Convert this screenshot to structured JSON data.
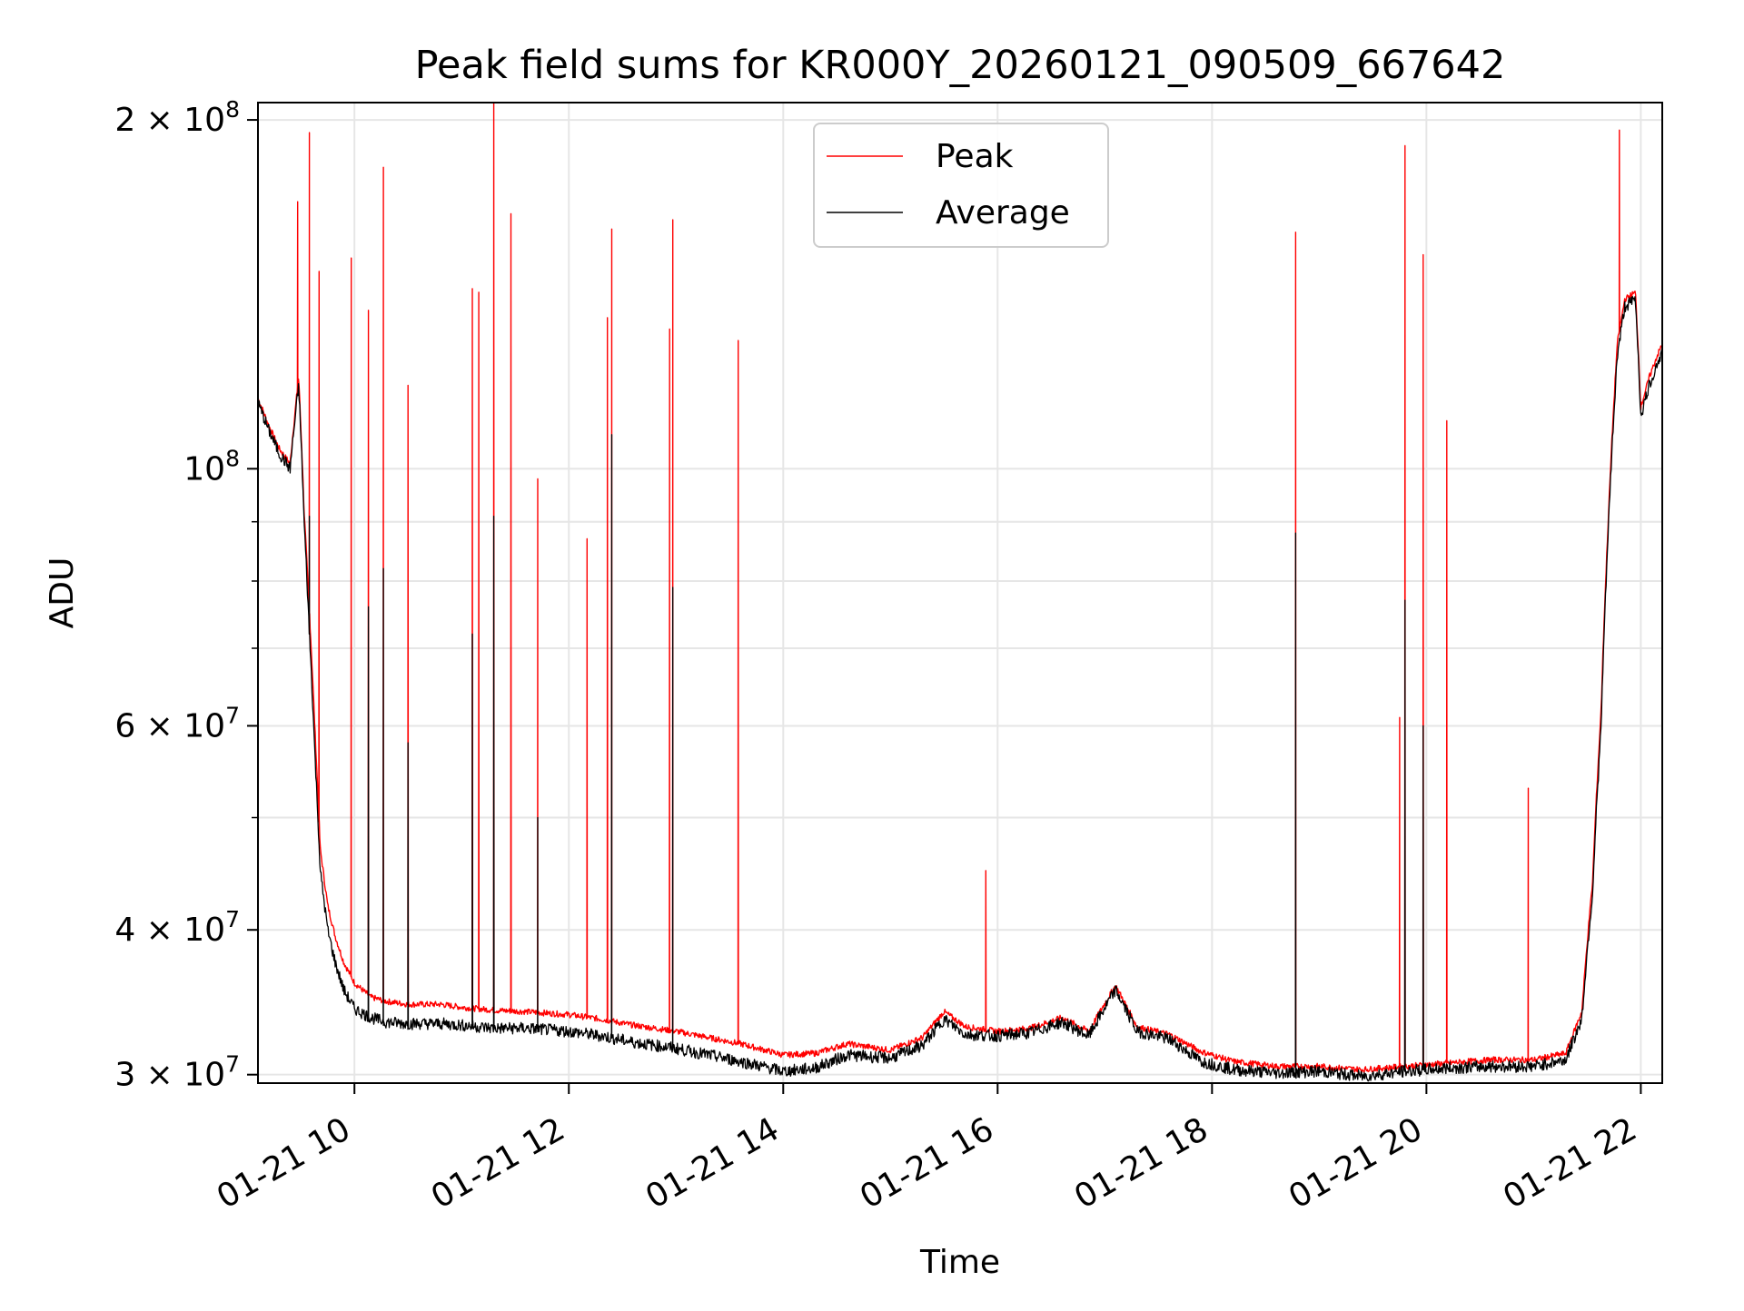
{
  "chart_data": {
    "type": "line",
    "title": "Peak field sums for KR000Y_20260121_090509_667642",
    "xlabel": "Time",
    "ylabel": "ADU",
    "yscale": "log",
    "xlim": [
      9.1,
      22.2
    ],
    "ylim": [
      29500000,
      207000000
    ],
    "grid": true,
    "legend_position": "upper-center",
    "x_ticks": [
      {
        "value": 10,
        "label": "01-21 10"
      },
      {
        "value": 12,
        "label": "01-21 12"
      },
      {
        "value": 14,
        "label": "01-21 14"
      },
      {
        "value": 16,
        "label": "01-21 16"
      },
      {
        "value": 18,
        "label": "01-21 18"
      },
      {
        "value": 20,
        "label": "01-21 20"
      },
      {
        "value": 22,
        "label": "01-21 22"
      }
    ],
    "y_major_ticks": [
      {
        "value": 30000000,
        "mantissa": "3",
        "exponent": "7"
      },
      {
        "value": 40000000,
        "mantissa": "4",
        "exponent": "7"
      },
      {
        "value": 60000000,
        "mantissa": "6",
        "exponent": "7"
      },
      {
        "value": 100000000,
        "mantissa": "",
        "exponent": "8"
      },
      {
        "value": 200000000,
        "mantissa": "2",
        "exponent": "8"
      }
    ],
    "y_minor_ticks": [
      50000000,
      70000000,
      80000000,
      90000000
    ],
    "tick_text": {
      "times": "×",
      "base": "10"
    },
    "series": [
      {
        "name": "Peak",
        "color": "#ff0000",
        "baseline": [
          [
            9.1,
            115000000
          ],
          [
            9.15,
            112000000
          ],
          [
            9.2,
            109000000
          ],
          [
            9.3,
            104000000
          ],
          [
            9.4,
            101000000
          ],
          [
            9.48,
            120000000
          ],
          [
            9.53,
            92000000
          ],
          [
            9.58,
            75000000
          ],
          [
            9.63,
            60000000
          ],
          [
            9.68,
            47000000
          ],
          [
            9.75,
            42000000
          ],
          [
            9.82,
            39500000
          ],
          [
            9.9,
            37500000
          ],
          [
            10.0,
            36000000
          ],
          [
            10.15,
            35000000
          ],
          [
            10.3,
            34700000
          ],
          [
            10.5,
            34500000
          ],
          [
            10.8,
            34500000
          ],
          [
            11.0,
            34300000
          ],
          [
            11.3,
            34100000
          ],
          [
            11.6,
            34000000
          ],
          [
            12.0,
            33800000
          ],
          [
            12.3,
            33500000
          ],
          [
            12.6,
            33100000
          ],
          [
            13.0,
            32700000
          ],
          [
            13.3,
            32300000
          ],
          [
            13.6,
            31900000
          ],
          [
            14.0,
            31200000
          ],
          [
            14.3,
            31300000
          ],
          [
            14.6,
            31900000
          ],
          [
            15.0,
            31500000
          ],
          [
            15.3,
            32300000
          ],
          [
            15.5,
            34000000
          ],
          [
            15.7,
            33000000
          ],
          [
            16.0,
            32700000
          ],
          [
            16.3,
            32900000
          ],
          [
            16.6,
            33600000
          ],
          [
            16.85,
            32700000
          ],
          [
            17.1,
            35800000
          ],
          [
            17.3,
            33000000
          ],
          [
            17.6,
            32500000
          ],
          [
            17.9,
            31400000
          ],
          [
            18.2,
            30800000
          ],
          [
            18.6,
            30500000
          ],
          [
            19.0,
            30500000
          ],
          [
            19.4,
            30300000
          ],
          [
            19.8,
            30500000
          ],
          [
            20.2,
            30700000
          ],
          [
            20.6,
            30900000
          ],
          [
            21.0,
            30900000
          ],
          [
            21.3,
            31300000
          ],
          [
            21.45,
            34000000
          ],
          [
            21.55,
            44000000
          ],
          [
            21.63,
            62000000
          ],
          [
            21.7,
            92000000
          ],
          [
            21.78,
            128000000
          ],
          [
            21.85,
            140000000
          ],
          [
            21.95,
            142000000
          ],
          [
            22.0,
            113000000
          ],
          [
            22.08,
            120000000
          ],
          [
            22.15,
            125000000
          ],
          [
            22.2,
            128000000
          ]
        ],
        "spikes": [
          [
            9.47,
            170000000
          ],
          [
            9.58,
            195000000
          ],
          [
            9.67,
            148000000
          ],
          [
            9.97,
            152000000
          ],
          [
            10.13,
            137000000
          ],
          [
            10.27,
            182000000
          ],
          [
            10.5,
            118000000
          ],
          [
            11.1,
            143000000
          ],
          [
            11.16,
            142000000
          ],
          [
            11.3,
            207000000
          ],
          [
            11.46,
            166000000
          ],
          [
            11.71,
            98000000
          ],
          [
            12.17,
            87000000
          ],
          [
            12.36,
            135000000
          ],
          [
            12.4,
            161000000
          ],
          [
            12.94,
            132000000
          ],
          [
            12.97,
            164000000
          ],
          [
            13.58,
            129000000
          ],
          [
            15.89,
            45000000
          ],
          [
            18.78,
            160000000
          ],
          [
            19.75,
            61000000
          ],
          [
            19.8,
            190000000
          ],
          [
            19.97,
            153000000
          ],
          [
            20.19,
            110000000
          ],
          [
            20.95,
            53000000
          ],
          [
            21.8,
            196000000
          ]
        ]
      },
      {
        "name": "Average",
        "color": "#000000",
        "baseline": [
          [
            9.1,
            114000000
          ],
          [
            9.15,
            111000000
          ],
          [
            9.2,
            108000000
          ],
          [
            9.3,
            103000000
          ],
          [
            9.4,
            100000000
          ],
          [
            9.48,
            118000000
          ],
          [
            9.53,
            90000000
          ],
          [
            9.58,
            72000000
          ],
          [
            9.63,
            57000000
          ],
          [
            9.68,
            45000000
          ],
          [
            9.75,
            40000000
          ],
          [
            9.82,
            37500000
          ],
          [
            9.9,
            35500000
          ],
          [
            10.0,
            34200000
          ],
          [
            10.15,
            33600000
          ],
          [
            10.3,
            33300000
          ],
          [
            10.5,
            33200000
          ],
          [
            10.8,
            33200000
          ],
          [
            11.0,
            33100000
          ],
          [
            11.3,
            32900000
          ],
          [
            11.6,
            32900000
          ],
          [
            12.0,
            32700000
          ],
          [
            12.3,
            32400000
          ],
          [
            12.6,
            32000000
          ],
          [
            13.0,
            31600000
          ],
          [
            13.3,
            31200000
          ],
          [
            13.6,
            30800000
          ],
          [
            14.0,
            30200000
          ],
          [
            14.3,
            30400000
          ],
          [
            14.6,
            31200000
          ],
          [
            15.0,
            31000000
          ],
          [
            15.3,
            31800000
          ],
          [
            15.5,
            33500000
          ],
          [
            15.7,
            32500000
          ],
          [
            16.0,
            32400000
          ],
          [
            16.3,
            32600000
          ],
          [
            16.6,
            33300000
          ],
          [
            16.85,
            32400000
          ],
          [
            17.1,
            35500000
          ],
          [
            17.3,
            32700000
          ],
          [
            17.6,
            32200000
          ],
          [
            17.9,
            30800000
          ],
          [
            18.2,
            30300000
          ],
          [
            18.6,
            30100000
          ],
          [
            19.0,
            30200000
          ],
          [
            19.4,
            29900000
          ],
          [
            19.8,
            30200000
          ],
          [
            20.2,
            30400000
          ],
          [
            20.6,
            30500000
          ],
          [
            21.0,
            30500000
          ],
          [
            21.3,
            30900000
          ],
          [
            21.45,
            33500000
          ],
          [
            21.55,
            43000000
          ],
          [
            21.63,
            60000000
          ],
          [
            21.7,
            90000000
          ],
          [
            21.78,
            125000000
          ],
          [
            21.85,
            138000000
          ],
          [
            21.95,
            140000000
          ],
          [
            22.0,
            111000000
          ],
          [
            22.08,
            118000000
          ],
          [
            22.15,
            123000000
          ],
          [
            22.2,
            126000000
          ]
        ],
        "spikes": [
          [
            9.58,
            91000000
          ],
          [
            10.13,
            76000000
          ],
          [
            10.27,
            82000000
          ],
          [
            10.5,
            58000000
          ],
          [
            11.1,
            72000000
          ],
          [
            11.3,
            91000000
          ],
          [
            11.71,
            50000000
          ],
          [
            12.4,
            107000000
          ],
          [
            12.97,
            79000000
          ],
          [
            18.78,
            88000000
          ],
          [
            19.8,
            77000000
          ],
          [
            19.97,
            60000000
          ]
        ]
      }
    ]
  }
}
